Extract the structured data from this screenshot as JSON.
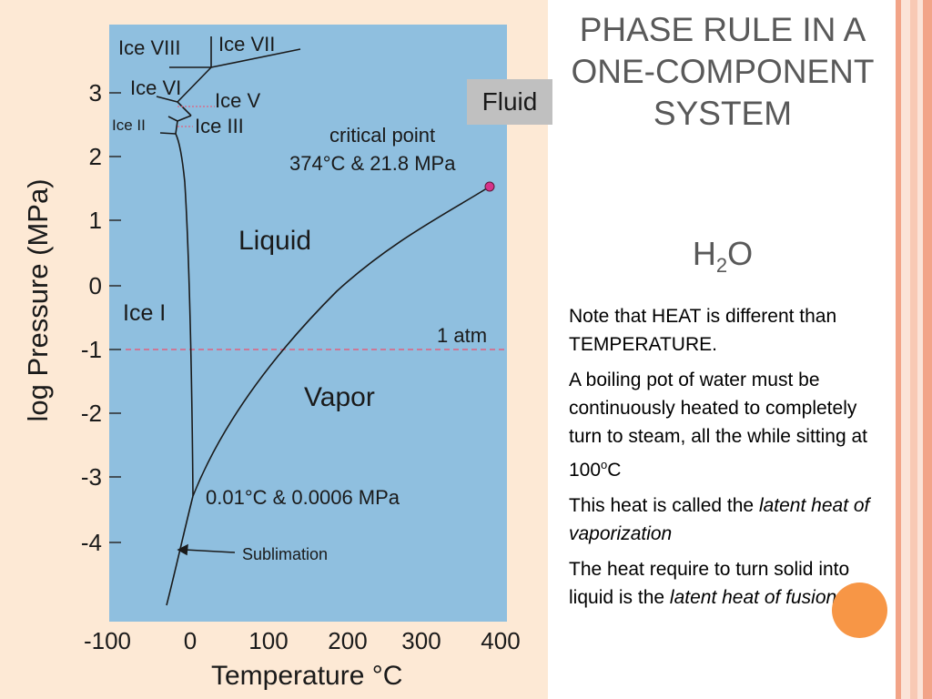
{
  "diagram": {
    "region_labels": {
      "ice_viii": "Ice VIII",
      "ice_vii": "Ice VII",
      "ice_vi": "Ice VI",
      "ice_v": "Ice V",
      "ice_ii": "Ice II",
      "ice_iii": "Ice III",
      "ice_i": "Ice I",
      "liquid": "Liquid",
      "vapor": "Vapor",
      "fluid": "Fluid"
    },
    "annotations": {
      "critical_point_label": "critical point",
      "critical_point_values": "374°C  & 21.8 MPa",
      "triple_point_values": "0.01°C  & 0.0006 MPa",
      "one_atm": "1 atm",
      "sublimation": "Sublimation"
    },
    "axes": {
      "ylabel": "log Pressure (MPa)",
      "xlabel": "Temperature  °C",
      "yticks": [
        "3",
        "2",
        "1",
        "0",
        "-1",
        "-2",
        "-3",
        "-4"
      ],
      "xticks": [
        "-100",
        "0",
        "100",
        "200",
        "300",
        "400"
      ]
    },
    "colors": {
      "plot_background": "#8fbfdf",
      "panel_background": "#fde9d5",
      "critical_point_marker": "#d6338a",
      "one_atm_line": "#e0607f"
    }
  },
  "slide": {
    "title": "PHASE RULE IN A ONE-COMPONENT SYSTEM",
    "formula": {
      "base": "H",
      "subscript": "2",
      "rest": "O"
    },
    "note1": "Note that HEAT is different than TEMPERATURE.",
    "note2_main": "A boiling pot of water must be continuously heated to completely turn to steam, all the while sitting at 100",
    "note2_sup": "o",
    "note2_end": "C",
    "note3_main": "This heat is called the ",
    "note3_italic": "latent heat of vaporization",
    "note4_main": "The heat require to turn solid into liquid is the ",
    "note4_italic": "latent heat of fusion"
  },
  "decor": {
    "accent": "#f79646",
    "stripe_colors": [
      "#f2a488",
      "#f8c9b4",
      "#fbe3d7"
    ]
  }
}
